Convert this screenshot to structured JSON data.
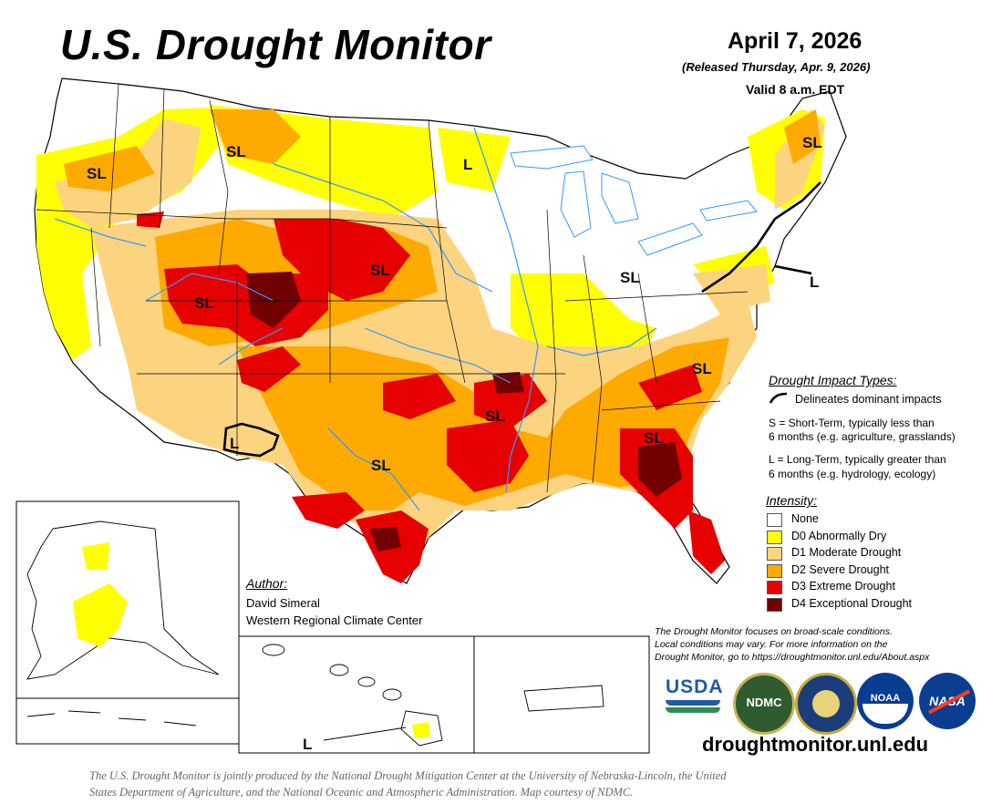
{
  "header": {
    "title": "U.S. Drought Monitor",
    "date": "April 7, 2026",
    "released": "(Released Thursday, Apr. 9, 2026)",
    "valid": "Valid 8 a.m. EDT"
  },
  "map_labels": {
    "sl_1": "SL",
    "sl_2": "SL",
    "l_1": "L",
    "sl_3": "SL",
    "sl_4": "SL",
    "sl_5": "SL",
    "l_2": "L",
    "sl_6": "SL",
    "sl_7": "SL",
    "l_3": "L",
    "sl_8": "SL",
    "sl_9": "SL",
    "l_4": "L"
  },
  "impact_legend": {
    "heading": "Drought Impact Types:",
    "delineates": "Delineates dominant impacts",
    "s_line1": "S = Short-Term, typically less than",
    "s_line2": "6 months (e.g. agriculture, grasslands)",
    "l_line1": "L = Long-Term, typically greater than",
    "l_line2": "6 months (e.g. hydrology, ecology)"
  },
  "intensity_legend": {
    "heading": "Intensity:",
    "items": [
      {
        "label": "None",
        "color": "#ffffff"
      },
      {
        "label": "D0 Abnormally Dry",
        "color": "#ffff00"
      },
      {
        "label": "D1 Moderate Drought",
        "color": "#fcd37f"
      },
      {
        "label": "D2 Severe Drought",
        "color": "#ffaa00"
      },
      {
        "label": "D3 Extreme Drought",
        "color": "#e60000"
      },
      {
        "label": "D4 Exceptional Drought",
        "color": "#730000"
      }
    ]
  },
  "author": {
    "heading": "Author:",
    "name": "David Simeral",
    "org": "Western Regional Climate Center"
  },
  "note": {
    "line1": "The Drought Monitor focuses on broad-scale conditions.",
    "line2": "Local conditions may vary. For more information on the",
    "line3": "Drought Monitor, go to https://droughtmonitor.unl.edu/About.aspx"
  },
  "logos": {
    "usda": "USDA",
    "ndmc": "NDMC",
    "noaa": "NOAA",
    "nasa": "NASA"
  },
  "url": "droughtmonitor.unl.edu",
  "footer": {
    "line1": "The U.S. Drought Monitor is jointly produced by the National Drought Mitigation Center at the University of Nebraska-Lincoln, the United",
    "line2": "States Department of Agriculture, and the National Oceanic and Atmospheric Administration. Map courtesy of NDMC."
  },
  "colors": {
    "none": "#ffffff",
    "d0": "#ffff00",
    "d1": "#fcd37f",
    "d2": "#ffaa00",
    "d3": "#e60000",
    "d4": "#730000",
    "water": "#3399ff",
    "boundary": "#000000"
  }
}
